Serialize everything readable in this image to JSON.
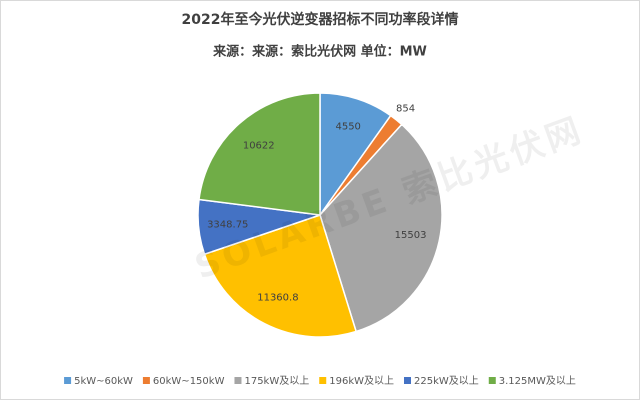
{
  "chart_data": {
    "type": "pie",
    "title": "2022年至今光伏逆变器招标不同功率段详情",
    "subtitle": "来源：来源：索比光伏网 单位：MW",
    "watermark": "SOLARBE 索比光伏网",
    "categories": [
      "5kW~60kW",
      "60kW~150kW",
      "175kW及以上",
      "196kW及以上",
      "225kW及以上",
      "3.125MW及以上"
    ],
    "values": [
      4550,
      854,
      15503,
      11360.8,
      3348.75,
      10622
    ],
    "colors": [
      "#5b9bd5",
      "#ed7d31",
      "#a5a5a5",
      "#ffc000",
      "#4472c4",
      "#70ad47"
    ],
    "legend": "bottom"
  }
}
